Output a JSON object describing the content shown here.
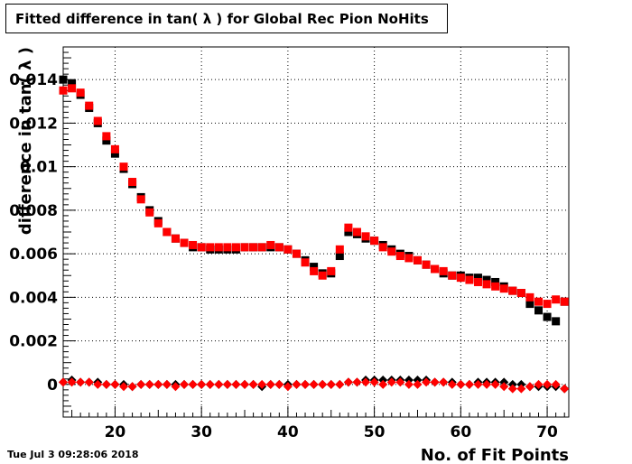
{
  "chart_data": {
    "type": "scatter",
    "title": "Fitted difference in tan( λ ) for Global Rec Pion NoHits",
    "xlabel": "No. of Fit Points",
    "ylabel": "difference in tan( λ )",
    "xlim": [
      14,
      72.5
    ],
    "ylim": [
      -0.0015,
      0.0155
    ],
    "x_ticks": [
      20,
      30,
      40,
      50,
      60,
      70
    ],
    "y_ticks": [
      0,
      0.002,
      0.004,
      0.006,
      0.008,
      0.01,
      0.012,
      0.014
    ],
    "y_tick_labels": [
      "0",
      "0.002",
      "0.004",
      "0.006",
      "0.008",
      "0.01",
      "0.012",
      "0.014"
    ],
    "grid": true,
    "series": [
      {
        "marker": "square",
        "color": "#000000",
        "x": [
          14,
          15,
          16,
          17,
          18,
          19,
          20,
          21,
          22,
          23,
          24,
          25,
          26,
          27,
          28,
          29,
          30,
          31,
          32,
          33,
          34,
          35,
          36,
          37,
          38,
          39,
          40,
          41,
          42,
          43,
          44,
          45,
          46,
          47,
          48,
          49,
          50,
          51,
          52,
          53,
          54,
          55,
          56,
          57,
          58,
          59,
          60,
          61,
          62,
          63,
          64,
          65,
          66,
          67,
          68,
          69,
          70,
          71,
          72
        ],
        "y": [
          0.014,
          0.0138,
          0.0133,
          0.0127,
          0.012,
          0.0112,
          0.0106,
          0.0099,
          0.0092,
          0.0086,
          0.008,
          0.0075,
          0.007,
          0.0067,
          0.0065,
          0.0063,
          0.0063,
          0.0062,
          0.0062,
          0.0062,
          0.0062,
          0.0063,
          0.0063,
          0.0063,
          0.0063,
          0.0063,
          0.0062,
          0.006,
          0.0057,
          0.0054,
          0.0051,
          0.0051,
          0.0059,
          0.007,
          0.0069,
          0.0067,
          0.0066,
          0.0064,
          0.0062,
          0.006,
          0.0059,
          0.0057,
          0.0055,
          0.0053,
          0.0051,
          0.005,
          0.005,
          0.0049,
          0.0049,
          0.0048,
          0.0047,
          0.0045,
          0.0043,
          0.0042,
          0.0037,
          0.0034,
          0.0031,
          0.0029,
          0.0038
        ]
      },
      {
        "marker": "square",
        "color": "#ff0000",
        "x": [
          14,
          15,
          16,
          17,
          18,
          19,
          20,
          21,
          22,
          23,
          24,
          25,
          26,
          27,
          28,
          29,
          30,
          31,
          32,
          33,
          34,
          35,
          36,
          37,
          38,
          39,
          40,
          41,
          42,
          43,
          44,
          45,
          46,
          47,
          48,
          49,
          50,
          51,
          52,
          53,
          54,
          55,
          56,
          57,
          58,
          59,
          60,
          61,
          62,
          63,
          64,
          65,
          66,
          67,
          68,
          69,
          70,
          71,
          72
        ],
        "y": [
          0.0135,
          0.0136,
          0.0134,
          0.0128,
          0.0121,
          0.0114,
          0.0108,
          0.01,
          0.0093,
          0.0085,
          0.0079,
          0.0074,
          0.007,
          0.0067,
          0.0065,
          0.0064,
          0.0063,
          0.0063,
          0.0063,
          0.0063,
          0.0063,
          0.0063,
          0.0063,
          0.0063,
          0.0064,
          0.0063,
          0.0062,
          0.006,
          0.0056,
          0.0052,
          0.005,
          0.0052,
          0.0062,
          0.0072,
          0.007,
          0.0068,
          0.0066,
          0.0063,
          0.0061,
          0.0059,
          0.0058,
          0.0057,
          0.0055,
          0.0053,
          0.0052,
          0.005,
          0.0049,
          0.0048,
          0.0047,
          0.0046,
          0.0045,
          0.0044,
          0.0043,
          0.0042,
          0.004,
          0.0038,
          0.0037,
          0.0039,
          0.0038
        ]
      },
      {
        "marker": "diamond",
        "color": "#000000",
        "x": [
          14,
          15,
          16,
          17,
          18,
          19,
          20,
          21,
          22,
          23,
          24,
          25,
          26,
          27,
          28,
          29,
          30,
          31,
          32,
          33,
          34,
          35,
          36,
          37,
          38,
          39,
          40,
          41,
          42,
          43,
          44,
          45,
          46,
          47,
          48,
          49,
          50,
          51,
          52,
          53,
          54,
          55,
          56,
          57,
          58,
          59,
          60,
          61,
          62,
          63,
          64,
          65,
          66,
          67,
          68,
          69,
          70,
          71,
          72
        ],
        "y": [
          0.0001,
          0.0002,
          0.0001,
          0.0001,
          0.0001,
          0.0,
          0.0,
          0.0,
          -0.0001,
          0.0,
          0.0,
          0.0,
          0.0,
          0.0,
          0.0,
          0.0,
          0.0,
          0.0,
          0.0,
          0.0,
          0.0,
          0.0,
          0.0,
          -0.0001,
          0.0,
          0.0,
          0.0,
          0.0,
          0.0,
          0.0,
          0.0,
          0.0,
          0.0,
          0.0001,
          0.0001,
          0.0002,
          0.0002,
          0.0002,
          0.0002,
          0.0002,
          0.0002,
          0.0002,
          0.0002,
          0.0001,
          0.0001,
          0.0001,
          0.0,
          0.0,
          0.0001,
          0.0001,
          0.0001,
          0.0001,
          0.0,
          0.0,
          -0.0001,
          -0.0001,
          -0.0001,
          -0.0001,
          -0.0002
        ]
      },
      {
        "marker": "diamond",
        "color": "#ff0000",
        "x": [
          14,
          15,
          16,
          17,
          18,
          19,
          20,
          21,
          22,
          23,
          24,
          25,
          26,
          27,
          28,
          29,
          30,
          31,
          32,
          33,
          34,
          35,
          36,
          37,
          38,
          39,
          40,
          41,
          42,
          43,
          44,
          45,
          46,
          47,
          48,
          49,
          50,
          51,
          52,
          53,
          54,
          55,
          56,
          57,
          58,
          59,
          60,
          61,
          62,
          63,
          64,
          65,
          66,
          67,
          68,
          69,
          70,
          71,
          72
        ],
        "y": [
          0.0001,
          0.0001,
          0.0001,
          0.0001,
          0.0,
          0.0,
          0.0,
          -0.0001,
          -0.0001,
          0.0,
          0.0,
          0.0,
          0.0,
          -0.0001,
          0.0,
          0.0,
          0.0,
          0.0,
          0.0,
          0.0,
          0.0,
          0.0,
          0.0,
          0.0,
          0.0,
          0.0,
          -0.0001,
          0.0,
          0.0,
          0.0,
          0.0,
          0.0,
          0.0,
          0.0001,
          0.0001,
          0.0001,
          0.0001,
          0.0,
          0.0001,
          0.0001,
          0.0,
          0.0,
          0.0001,
          0.0001,
          0.0001,
          0.0,
          0.0,
          0.0,
          0.0,
          0.0,
          0.0,
          -0.0001,
          -0.0002,
          -0.0002,
          -0.0001,
          0.0,
          0.0,
          0.0,
          -0.0002
        ]
      }
    ]
  },
  "footer": {
    "timestamp": "Tue Jul  3 09:28:06 2018"
  }
}
